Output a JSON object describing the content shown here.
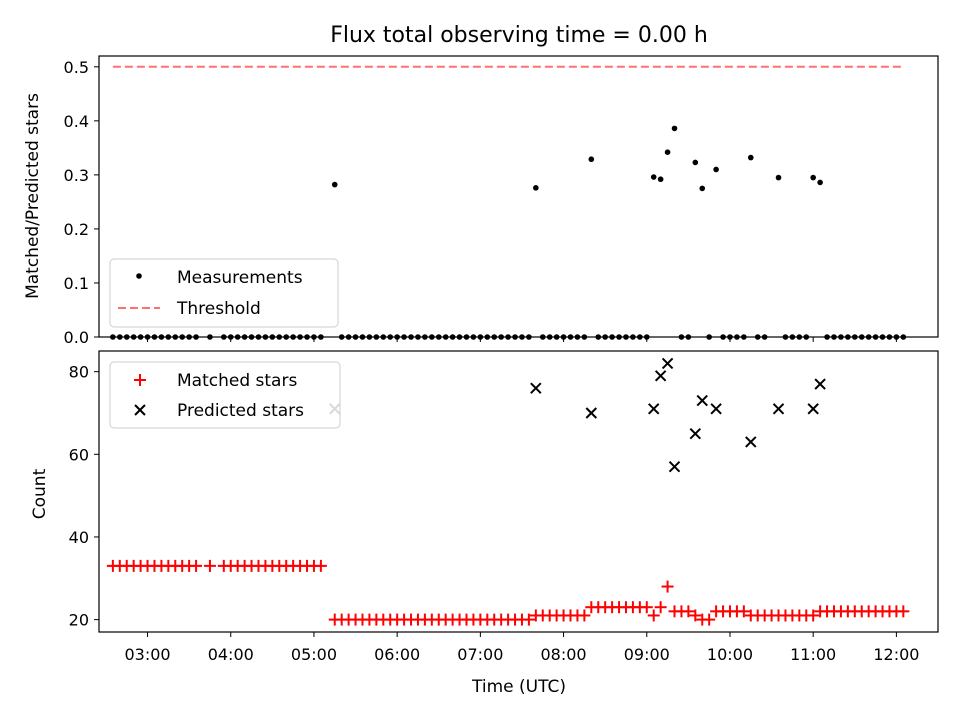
{
  "chart_data": [
    {
      "type": "scatter",
      "title": "Flux total observing time = 0.00 h",
      "xlabel": "",
      "ylabel": "Matched/Predicted stars",
      "xlim": [
        "02:25",
        "12:30"
      ],
      "ylim": [
        0,
        0.52
      ],
      "yticks": [
        "0.0",
        "0.1",
        "0.2",
        "0.3",
        "0.4",
        "0.5"
      ],
      "xticks": [
        "03:00",
        "04:00",
        "05:00",
        "06:00",
        "07:00",
        "08:00",
        "09:00",
        "10:00",
        "11:00",
        "12:00"
      ],
      "legend": {
        "position": "lower-left",
        "entries": [
          "Measurements",
          "Threshold"
        ]
      },
      "series": [
        {
          "name": "Measurements",
          "color": "#000000",
          "marker": "dot",
          "points": [
            [
              "05:15",
              0.282
            ],
            [
              "07:40",
              0.276
            ],
            [
              "08:20",
              0.329
            ],
            [
              "09:05",
              0.296
            ],
            [
              "09:10",
              0.292
            ],
            [
              "09:15",
              0.342
            ],
            [
              "09:20",
              0.386
            ],
            [
              "09:35",
              0.323
            ],
            [
              "09:40",
              0.275
            ],
            [
              "09:50",
              0.31
            ],
            [
              "10:15",
              0.332
            ],
            [
              "10:35",
              0.295
            ],
            [
              "11:00",
              0.295
            ],
            [
              "11:05",
              0.286
            ]
          ],
          "zero_times": [
            "02:35",
            "02:40",
            "02:45",
            "02:50",
            "02:55",
            "03:00",
            "03:05",
            "03:10",
            "03:15",
            "03:20",
            "03:25",
            "03:30",
            "03:35",
            "03:45",
            "03:55",
            "04:00",
            "04:05",
            "04:10",
            "04:15",
            "04:20",
            "04:25",
            "04:30",
            "04:35",
            "04:40",
            "04:45",
            "04:50",
            "04:55",
            "05:00",
            "05:05",
            "05:20",
            "05:25",
            "05:30",
            "05:35",
            "05:40",
            "05:45",
            "05:50",
            "05:55",
            "06:00",
            "06:05",
            "06:10",
            "06:15",
            "06:20",
            "06:25",
            "06:30",
            "06:35",
            "06:40",
            "06:45",
            "06:50",
            "06:55",
            "07:00",
            "07:05",
            "07:10",
            "07:15",
            "07:20",
            "07:25",
            "07:30",
            "07:35",
            "07:45",
            "07:50",
            "07:55",
            "08:00",
            "08:05",
            "08:10",
            "08:15",
            "08:25",
            "08:30",
            "08:35",
            "08:40",
            "08:45",
            "08:50",
            "08:55",
            "09:00",
            "09:25",
            "09:30",
            "09:45",
            "09:55",
            "10:00",
            "10:05",
            "10:10",
            "10:20",
            "10:25",
            "10:40",
            "10:45",
            "10:50",
            "10:55",
            "11:10",
            "11:15",
            "11:20",
            "11:25",
            "11:30",
            "11:35",
            "11:40",
            "11:45",
            "11:50",
            "11:55",
            "12:00",
            "12:05"
          ]
        },
        {
          "name": "Threshold",
          "type": "line",
          "color": "#ff7070",
          "dash": true,
          "x": [
            "02:35",
            "12:05"
          ],
          "values": [
            0.5,
            0.5
          ]
        }
      ]
    },
    {
      "type": "scatter",
      "title": "",
      "xlabel": "Time (UTC)",
      "ylabel": "Count",
      "xlim": [
        "02:25",
        "12:30"
      ],
      "ylim": [
        17,
        85
      ],
      "yticks": [
        "20",
        "40",
        "60",
        "80"
      ],
      "xticks": [
        "03:00",
        "04:00",
        "05:00",
        "06:00",
        "07:00",
        "08:00",
        "09:00",
        "10:00",
        "11:00",
        "12:00"
      ],
      "legend": {
        "position": "top-left",
        "entries": [
          "Matched stars",
          "Predicted stars"
        ]
      },
      "series": [
        {
          "name": "Matched stars",
          "color": "#ff0000",
          "marker": "plus",
          "points": [
            [
              "02:35",
              33
            ],
            [
              "02:40",
              33
            ],
            [
              "02:45",
              33
            ],
            [
              "02:50",
              33
            ],
            [
              "02:55",
              33
            ],
            [
              "03:00",
              33
            ],
            [
              "03:05",
              33
            ],
            [
              "03:10",
              33
            ],
            [
              "03:15",
              33
            ],
            [
              "03:20",
              33
            ],
            [
              "03:25",
              33
            ],
            [
              "03:30",
              33
            ],
            [
              "03:35",
              33
            ],
            [
              "03:45",
              33
            ],
            [
              "03:55",
              33
            ],
            [
              "04:00",
              33
            ],
            [
              "04:05",
              33
            ],
            [
              "04:10",
              33
            ],
            [
              "04:15",
              33
            ],
            [
              "04:20",
              33
            ],
            [
              "04:25",
              33
            ],
            [
              "04:30",
              33
            ],
            [
              "04:35",
              33
            ],
            [
              "04:40",
              33
            ],
            [
              "04:45",
              33
            ],
            [
              "04:50",
              33
            ],
            [
              "04:55",
              33
            ],
            [
              "05:00",
              33
            ],
            [
              "05:05",
              33
            ],
            [
              "05:15",
              20
            ],
            [
              "05:20",
              20
            ],
            [
              "05:25",
              20
            ],
            [
              "05:30",
              20
            ],
            [
              "05:35",
              20
            ],
            [
              "05:40",
              20
            ],
            [
              "05:45",
              20
            ],
            [
              "05:50",
              20
            ],
            [
              "05:55",
              20
            ],
            [
              "06:00",
              20
            ],
            [
              "06:05",
              20
            ],
            [
              "06:10",
              20
            ],
            [
              "06:15",
              20
            ],
            [
              "06:20",
              20
            ],
            [
              "06:25",
              20
            ],
            [
              "06:30",
              20
            ],
            [
              "06:35",
              20
            ],
            [
              "06:40",
              20
            ],
            [
              "06:45",
              20
            ],
            [
              "06:50",
              20
            ],
            [
              "06:55",
              20
            ],
            [
              "07:00",
              20
            ],
            [
              "07:05",
              20
            ],
            [
              "07:10",
              20
            ],
            [
              "07:15",
              20
            ],
            [
              "07:20",
              20
            ],
            [
              "07:25",
              20
            ],
            [
              "07:30",
              20
            ],
            [
              "07:35",
              20
            ],
            [
              "07:40",
              21
            ],
            [
              "07:45",
              21
            ],
            [
              "07:50",
              21
            ],
            [
              "07:55",
              21
            ],
            [
              "08:00",
              21
            ],
            [
              "08:05",
              21
            ],
            [
              "08:10",
              21
            ],
            [
              "08:15",
              21
            ],
            [
              "08:20",
              23
            ],
            [
              "08:25",
              23
            ],
            [
              "08:30",
              23
            ],
            [
              "08:35",
              23
            ],
            [
              "08:40",
              23
            ],
            [
              "08:45",
              23
            ],
            [
              "08:50",
              23
            ],
            [
              "08:55",
              23
            ],
            [
              "09:00",
              23
            ],
            [
              "09:05",
              21
            ],
            [
              "09:10",
              23
            ],
            [
              "09:15",
              28
            ],
            [
              "09:20",
              22
            ],
            [
              "09:25",
              22
            ],
            [
              "09:30",
              22
            ],
            [
              "09:35",
              21
            ],
            [
              "09:40",
              20
            ],
            [
              "09:45",
              20
            ],
            [
              "09:50",
              22
            ],
            [
              "09:55",
              22
            ],
            [
              "10:00",
              22
            ],
            [
              "10:05",
              22
            ],
            [
              "10:10",
              22
            ],
            [
              "10:15",
              21
            ],
            [
              "10:20",
              21
            ],
            [
              "10:25",
              21
            ],
            [
              "10:30",
              21
            ],
            [
              "10:35",
              21
            ],
            [
              "10:40",
              21
            ],
            [
              "10:45",
              21
            ],
            [
              "10:50",
              21
            ],
            [
              "10:55",
              21
            ],
            [
              "11:00",
              21
            ],
            [
              "11:05",
              22
            ],
            [
              "11:10",
              22
            ],
            [
              "11:15",
              22
            ],
            [
              "11:20",
              22
            ],
            [
              "11:25",
              22
            ],
            [
              "11:30",
              22
            ],
            [
              "11:35",
              22
            ],
            [
              "11:40",
              22
            ],
            [
              "11:45",
              22
            ],
            [
              "11:50",
              22
            ],
            [
              "11:55",
              22
            ],
            [
              "12:00",
              22
            ],
            [
              "12:05",
              22
            ]
          ]
        },
        {
          "name": "Predicted stars",
          "color": "#000000",
          "marker": "x",
          "points": [
            [
              "05:15",
              71
            ],
            [
              "07:40",
              76
            ],
            [
              "08:20",
              70
            ],
            [
              "09:05",
              71
            ],
            [
              "09:10",
              79
            ],
            [
              "09:15",
              82
            ],
            [
              "09:20",
              57
            ],
            [
              "09:35",
              65
            ],
            [
              "09:40",
              73
            ],
            [
              "09:50",
              71
            ],
            [
              "10:15",
              63
            ],
            [
              "10:35",
              71
            ],
            [
              "11:00",
              71
            ],
            [
              "11:05",
              77
            ]
          ]
        }
      ]
    }
  ]
}
